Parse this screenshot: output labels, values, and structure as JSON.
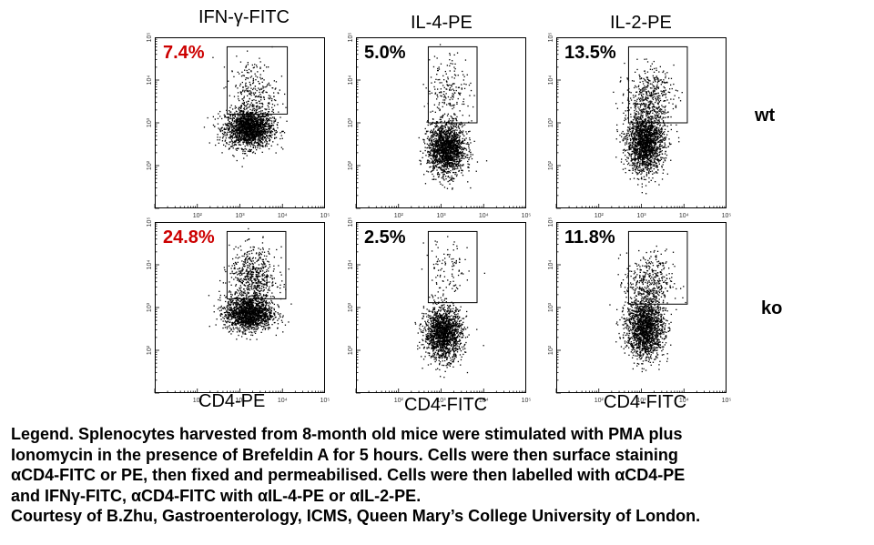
{
  "column_titles": [
    "IFN-γ-FITC",
    "IL-4-PE",
    "IL-2-PE"
  ],
  "row_labels": [
    "wt",
    "ko"
  ],
  "x_axis_labels": [
    "CD4-PE",
    "CD4-FITC",
    "CD4-FITC"
  ],
  "highlight_color": "#cc0000",
  "legend_lines": [
    "Legend. Splenocytes harvested from 8-month old mice were stimulated with PMA plus",
    "Ionomycin in the presence of Brefeldin A for 5 hours. Cells were then surface staining",
    "αCD4-FITC or PE, then fixed and permeabilised. Cells were then labelled with αCD4-PE",
    "and IFNγ-FITC, αCD4-FITC with αIL-4-PE or αIL-2-PE.",
    "Courtesy of B.Zhu, Gastroenterology, ICMS, Queen Mary’s College University of London."
  ],
  "chart_data": [
    {
      "type": "scatter",
      "row": "wt",
      "column": "IFN-γ-FITC",
      "percent_label": "7.4%",
      "highlight": true,
      "axis_scale": "log",
      "xlim": [
        10,
        100000
      ],
      "ylim": [
        10,
        100000
      ],
      "x_ticks": [
        "10²",
        "10³",
        "10⁴",
        "10⁵"
      ],
      "y_ticks": [
        "10²",
        "10³",
        "10⁴",
        "10⁵"
      ],
      "gate": {
        "x": [
          500,
          13000
        ],
        "y": [
          1600,
          60000
        ]
      },
      "population": {
        "center_x": 1600,
        "center_y": 750,
        "spread_x": 0.28,
        "spread_y": 0.22,
        "count": 1800
      },
      "positive": {
        "center_x": 2000,
        "center_y": 5000,
        "spread_x": 0.28,
        "spread_y": 0.4,
        "count": 300
      }
    },
    {
      "type": "scatter",
      "row": "wt",
      "column": "IL-4-PE",
      "percent_label": "5.0%",
      "highlight": false,
      "axis_scale": "log",
      "xlim": [
        10,
        100000
      ],
      "ylim": [
        10,
        100000
      ],
      "x_ticks": [
        "10²",
        "10³",
        "10⁴",
        "10⁵"
      ],
      "y_ticks": [
        "10²",
        "10³",
        "10⁴",
        "10⁵"
      ],
      "gate": {
        "x": [
          500,
          7000
        ],
        "y": [
          1000,
          60000
        ]
      },
      "population": {
        "center_x": 1300,
        "center_y": 250,
        "spread_x": 0.22,
        "spread_y": 0.3,
        "count": 1700
      },
      "positive": {
        "center_x": 1500,
        "center_y": 6000,
        "spread_x": 0.25,
        "spread_y": 0.45,
        "count": 200
      }
    },
    {
      "type": "scatter",
      "row": "wt",
      "column": "IL-2-PE",
      "percent_label": "13.5%",
      "highlight": false,
      "axis_scale": "log",
      "xlim": [
        10,
        100000
      ],
      "ylim": [
        10,
        100000
      ],
      "x_ticks": [
        "10²",
        "10³",
        "10⁴",
        "10⁵"
      ],
      "y_ticks": [
        "10²",
        "10³",
        "10⁴",
        "10⁵"
      ],
      "gate": {
        "x": [
          500,
          12000
        ],
        "y": [
          1000,
          60000
        ]
      },
      "population": {
        "center_x": 1200,
        "center_y": 350,
        "spread_x": 0.22,
        "spread_y": 0.35,
        "count": 1800
      },
      "positive": {
        "center_x": 1500,
        "center_y": 4000,
        "spread_x": 0.28,
        "spread_y": 0.35,
        "count": 450
      }
    },
    {
      "type": "scatter",
      "row": "ko",
      "column": "IFN-γ-FITC",
      "percent_label": "24.8%",
      "highlight": true,
      "axis_scale": "log",
      "xlim": [
        10,
        100000
      ],
      "ylim": [
        10,
        100000
      ],
      "x_ticks": [
        "10²",
        "10³",
        "10⁴",
        "10⁵"
      ],
      "y_ticks": [
        "10²",
        "10³",
        "10⁴",
        "10⁵"
      ],
      "gate": {
        "x": [
          500,
          12000
        ],
        "y": [
          1600,
          60000
        ]
      },
      "population": {
        "center_x": 1600,
        "center_y": 750,
        "spread_x": 0.28,
        "spread_y": 0.2,
        "count": 1600
      },
      "positive": {
        "center_x": 2000,
        "center_y": 5000,
        "spread_x": 0.28,
        "spread_y": 0.35,
        "count": 600
      }
    },
    {
      "type": "scatter",
      "row": "ko",
      "column": "IL-4-PE",
      "percent_label": "2.5%",
      "highlight": false,
      "axis_scale": "log",
      "xlim": [
        10,
        100000
      ],
      "ylim": [
        10,
        100000
      ],
      "x_ticks": [
        "10²",
        "10³",
        "10⁴",
        "10⁵"
      ],
      "y_ticks": [
        "10²",
        "10³",
        "10⁴",
        "10⁵"
      ],
      "gate": {
        "x": [
          500,
          7000
        ],
        "y": [
          1300,
          60000
        ]
      },
      "population": {
        "center_x": 1100,
        "center_y": 250,
        "spread_x": 0.22,
        "spread_y": 0.3,
        "count": 1600
      },
      "positive": {
        "center_x": 1300,
        "center_y": 6000,
        "spread_x": 0.25,
        "spread_y": 0.45,
        "count": 110
      }
    },
    {
      "type": "scatter",
      "row": "ko",
      "column": "IL-2-PE",
      "percent_label": "11.8%",
      "highlight": false,
      "axis_scale": "log",
      "xlim": [
        10,
        100000
      ],
      "ylim": [
        10,
        100000
      ],
      "x_ticks": [
        "10²",
        "10³",
        "10⁴",
        "10⁵"
      ],
      "y_ticks": [
        "10²",
        "10³",
        "10⁴",
        "10⁵"
      ],
      "gate": {
        "x": [
          500,
          12000
        ],
        "y": [
          1200,
          60000
        ]
      },
      "population": {
        "center_x": 1200,
        "center_y": 350,
        "spread_x": 0.22,
        "spread_y": 0.35,
        "count": 1700
      },
      "positive": {
        "center_x": 1500,
        "center_y": 4000,
        "spread_x": 0.28,
        "spread_y": 0.35,
        "count": 380
      }
    }
  ]
}
